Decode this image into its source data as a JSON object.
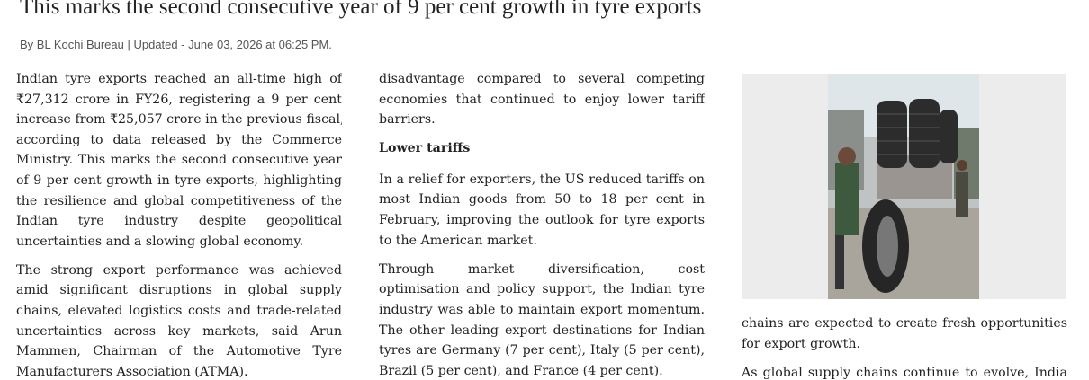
{
  "headline": "This marks the second consecutive year of 9 per cent growth in tyre exports",
  "byline": "By BL Kochi Bureau | Updated - June 03, 2026 at 06:25 PM.",
  "columns": [
    {
      "blocks": [
        {
          "lines": [
            "Indian tyre exports reached an all-time high of",
            "₹27,312 crore in FY26, registering a 9 per cent",
            "increase from ₹25,057 crore in the previous fiscal,",
            "according to data released by the Commerce",
            "Ministry. This marks the second consecutive year",
            "of 9 per cent growth in tyre exports, highlighting",
            "the resilience and global competitiveness of the",
            "Indian tyre industry despite geopolitical",
            "uncertainties and a slowing global economy."
          ]
        },
        {
          "lines": [
            "The strong export performance was achieved",
            "amid significant disruptions in global supply",
            "chains, elevated logistics costs and trade-related",
            "uncertainties across key markets, said Arun",
            "Mammen, Chairman of the Automotive Tyre",
            "Manufacturers Association (ATMA)."
          ]
        }
      ]
    },
    {
      "blocks": [
        {
          "lines": [
            "disadvantage compared to several competing",
            "economies that continued to enjoy lower tariff",
            "barriers."
          ]
        },
        {
          "heading": "Lower tariffs"
        },
        {
          "lines": [
            "In a relief for exporters, the US reduced tariffs on",
            "most Indian goods from 50 to 18 per cent in",
            "February, improving the outlook for tyre exports",
            "to the American market."
          ]
        },
        {
          "lines": [
            "Through market diversification, cost",
            "optimisation and policy support, the Indian tyre",
            "industry was able to maintain export momentum.",
            "The other leading export destinations for Indian",
            "tyres are Germany (7 per cent), Italy (5 per cent),",
            "Brazil (5 per cent), and France (4 per cent)."
          ]
        }
      ]
    },
    {
      "blocks": [
        {
          "lines": [
            "chains are expected to create fresh opportunities",
            "for export growth."
          ]
        },
        {
          "lines": [
            "As global supply chains continue to evolve, India"
          ]
        }
      ]
    }
  ]
}
